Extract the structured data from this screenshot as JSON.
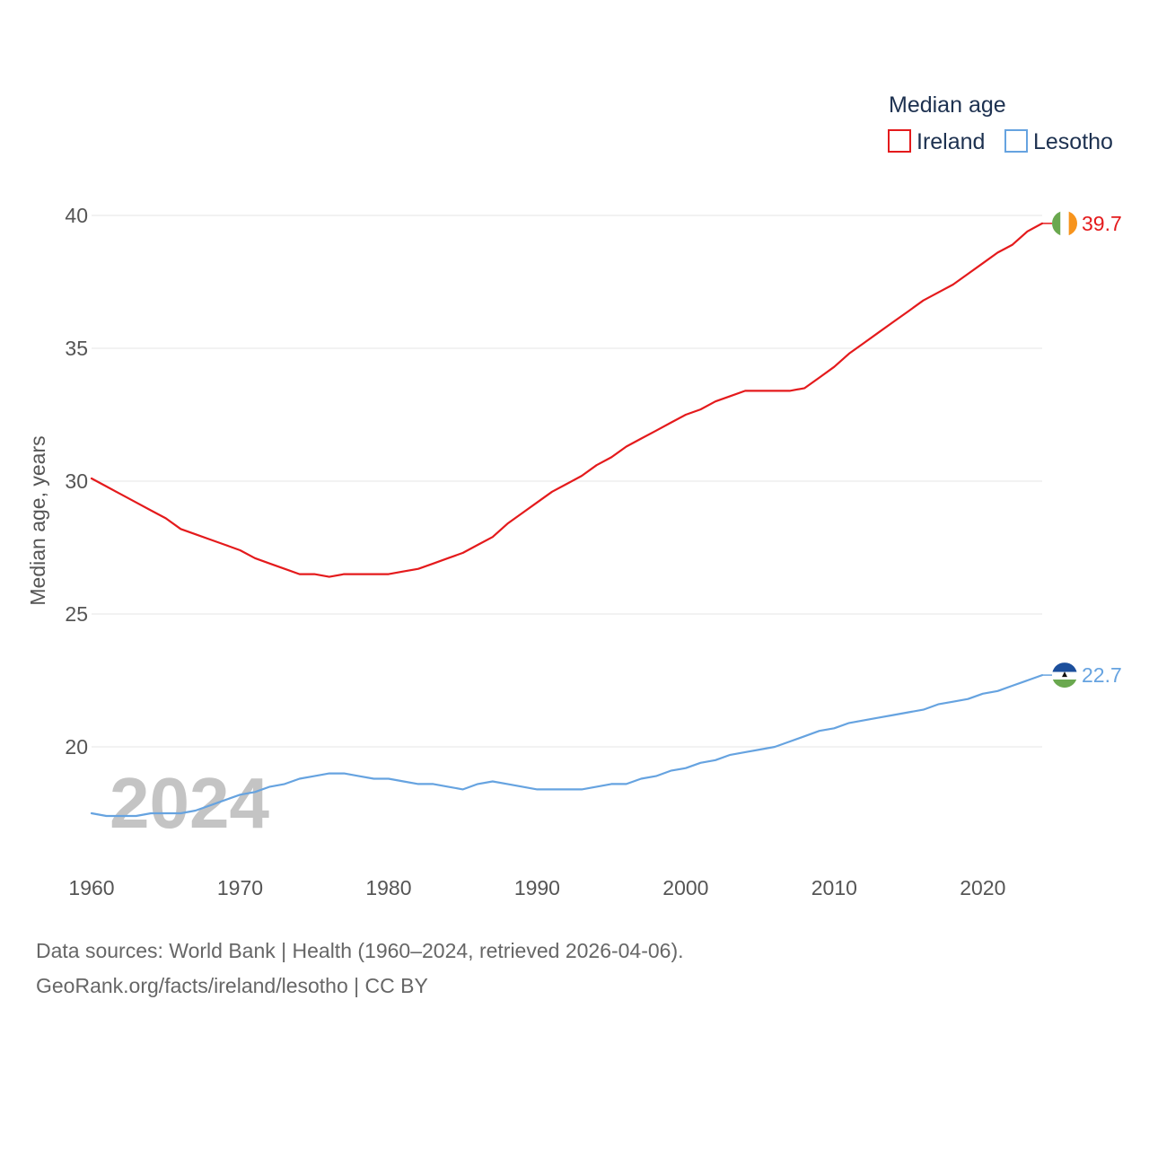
{
  "chart_data": {
    "type": "line",
    "legend_title": "Median age",
    "watermark_year": "2024",
    "ylabel": "Median age, years",
    "xlabel": "",
    "ylim": [
      16,
      42
    ],
    "xlim": [
      1960,
      2024
    ],
    "yticks": [
      20,
      25,
      30,
      35,
      40
    ],
    "xticks": [
      1960,
      1970,
      1980,
      1990,
      2000,
      2010,
      2020
    ],
    "grid": true,
    "legend_position": "top-right",
    "x": [
      1960,
      1961,
      1962,
      1963,
      1964,
      1965,
      1966,
      1967,
      1968,
      1969,
      1970,
      1971,
      1972,
      1973,
      1974,
      1975,
      1976,
      1977,
      1978,
      1979,
      1980,
      1981,
      1982,
      1983,
      1984,
      1985,
      1986,
      1987,
      1988,
      1989,
      1990,
      1991,
      1992,
      1993,
      1994,
      1995,
      1996,
      1997,
      1998,
      1999,
      2000,
      2001,
      2002,
      2003,
      2004,
      2005,
      2006,
      2007,
      2008,
      2009,
      2010,
      2011,
      2012,
      2013,
      2014,
      2015,
      2016,
      2017,
      2018,
      2019,
      2020,
      2021,
      2022,
      2023,
      2024
    ],
    "series": [
      {
        "name": "Ireland",
        "color": "#e41a1c",
        "end_label": "39.7",
        "flag": "ireland-flag",
        "values": [
          30.1,
          29.8,
          29.5,
          29.2,
          28.9,
          28.6,
          28.2,
          28.0,
          27.8,
          27.6,
          27.4,
          27.1,
          26.9,
          26.7,
          26.5,
          26.5,
          26.4,
          26.5,
          26.5,
          26.5,
          26.5,
          26.6,
          26.7,
          26.9,
          27.1,
          27.3,
          27.6,
          27.9,
          28.4,
          28.8,
          29.2,
          29.6,
          29.9,
          30.2,
          30.6,
          30.9,
          31.3,
          31.6,
          31.9,
          32.2,
          32.5,
          32.7,
          33.0,
          33.2,
          33.4,
          33.4,
          33.4,
          33.4,
          33.5,
          33.9,
          34.3,
          34.8,
          35.2,
          35.6,
          36.0,
          36.4,
          36.8,
          37.1,
          37.4,
          37.8,
          38.2,
          38.6,
          38.9,
          39.4,
          39.7
        ]
      },
      {
        "name": "Lesotho",
        "color": "#66a3e0",
        "end_label": "22.7",
        "flag": "lesotho-flag",
        "values": [
          17.5,
          17.4,
          17.4,
          17.4,
          17.5,
          17.5,
          17.5,
          17.6,
          17.8,
          18.0,
          18.2,
          18.3,
          18.5,
          18.6,
          18.8,
          18.9,
          19.0,
          19.0,
          18.9,
          18.8,
          18.8,
          18.7,
          18.6,
          18.6,
          18.5,
          18.4,
          18.6,
          18.7,
          18.6,
          18.5,
          18.4,
          18.4,
          18.4,
          18.4,
          18.5,
          18.6,
          18.6,
          18.8,
          18.9,
          19.1,
          19.2,
          19.4,
          19.5,
          19.7,
          19.8,
          19.9,
          20.0,
          20.2,
          20.4,
          20.6,
          20.7,
          20.9,
          21.0,
          21.1,
          21.2,
          21.3,
          21.4,
          21.6,
          21.7,
          21.8,
          22.0,
          22.1,
          22.3,
          22.5,
          22.7
        ]
      }
    ]
  },
  "sources": {
    "line1": "Data sources: World Bank | Health (1960–2024, retrieved 2026-04-06).",
    "line2": "GeoRank.org/facts/ireland/lesotho | CC BY"
  }
}
